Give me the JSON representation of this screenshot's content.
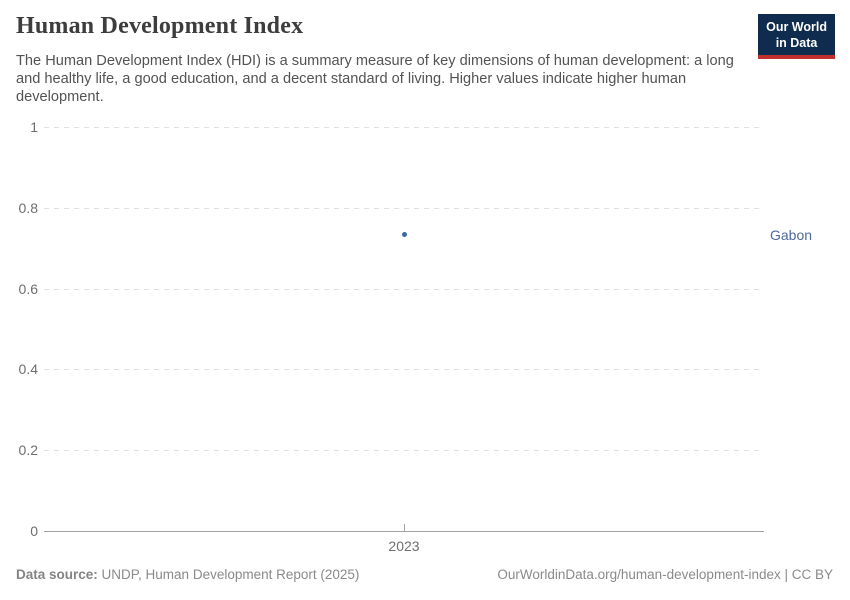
{
  "header": {
    "title": "Human Development Index",
    "subtitle": "The Human Development Index (HDI) is a summary measure of key dimensions of human development: a long\nand healthy life, a good education, and a decent standard of living. Higher values indicate higher human\ndevelopment.",
    "logo": {
      "line1": "Our World",
      "line2": "in Data"
    }
  },
  "chart_data": {
    "type": "scatter",
    "title": "Human Development Index",
    "x": [
      2023
    ],
    "xtick_labels": [
      "2023"
    ],
    "series": [
      {
        "name": "Gabon",
        "values": [
          0.733
        ]
      }
    ],
    "xlabel": "",
    "ylabel": "",
    "ylim": [
      0,
      1
    ],
    "yticks": [
      0,
      0.2,
      0.4,
      0.6,
      0.8,
      1
    ],
    "ytick_labels": [
      "0",
      "0.2",
      "0.4",
      "0.6",
      "0.8",
      "1"
    ],
    "grid": true,
    "legend_position": "right-of-point"
  },
  "footer": {
    "source_label": "Data source:",
    "source_text": " UNDP, Human Development Report (2025)",
    "link_text": "OurWorldinData.org/human-development-index | CC BY"
  },
  "colors": {
    "entity": "#4c6a9c",
    "point": "#3d68a8",
    "grid": "#e0e0e0",
    "axis": "#a3a3a3",
    "tick_label": "#6e6e6e",
    "title": "#3d3d3d",
    "subtitle": "#535353",
    "footer": "#8a8a8a",
    "logo_bg": "#0f2b4d",
    "logo_accent": "#c0302d"
  }
}
